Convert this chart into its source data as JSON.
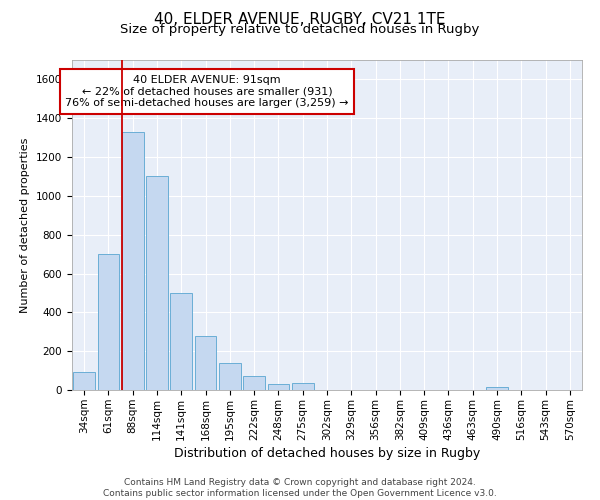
{
  "title_line1": "40, ELDER AVENUE, RUGBY, CV21 1TE",
  "title_line2": "Size of property relative to detached houses in Rugby",
  "xlabel": "Distribution of detached houses by size in Rugby",
  "ylabel": "Number of detached properties",
  "bar_color": "#c5d8f0",
  "bar_edge_color": "#6aaed6",
  "background_color": "#e8eef8",
  "grid_color": "white",
  "annotation_box_color": "#cc0000",
  "annotation_text": "40 ELDER AVENUE: 91sqm\n← 22% of detached houses are smaller (931)\n76% of semi-detached houses are larger (3,259) →",
  "vline_color": "#cc0000",
  "categories": [
    "34sqm",
    "61sqm",
    "88sqm",
    "114sqm",
    "141sqm",
    "168sqm",
    "195sqm",
    "222sqm",
    "248sqm",
    "275sqm",
    "302sqm",
    "329sqm",
    "356sqm",
    "382sqm",
    "409sqm",
    "436sqm",
    "463sqm",
    "490sqm",
    "516sqm",
    "543sqm",
    "570sqm"
  ],
  "bar_heights": [
    95,
    700,
    1330,
    1100,
    500,
    280,
    140,
    70,
    30,
    35,
    0,
    0,
    0,
    0,
    0,
    0,
    0,
    15,
    0,
    0,
    0
  ],
  "ylim": [
    0,
    1700
  ],
  "yticks": [
    0,
    200,
    400,
    600,
    800,
    1000,
    1200,
    1400,
    1600
  ],
  "footer_text": "Contains HM Land Registry data © Crown copyright and database right 2024.\nContains public sector information licensed under the Open Government Licence v3.0.",
  "title_fontsize": 11,
  "subtitle_fontsize": 9.5,
  "ylabel_fontsize": 8,
  "xlabel_fontsize": 9,
  "tick_fontsize": 7.5,
  "footer_fontsize": 6.5,
  "ann_fontsize": 8
}
